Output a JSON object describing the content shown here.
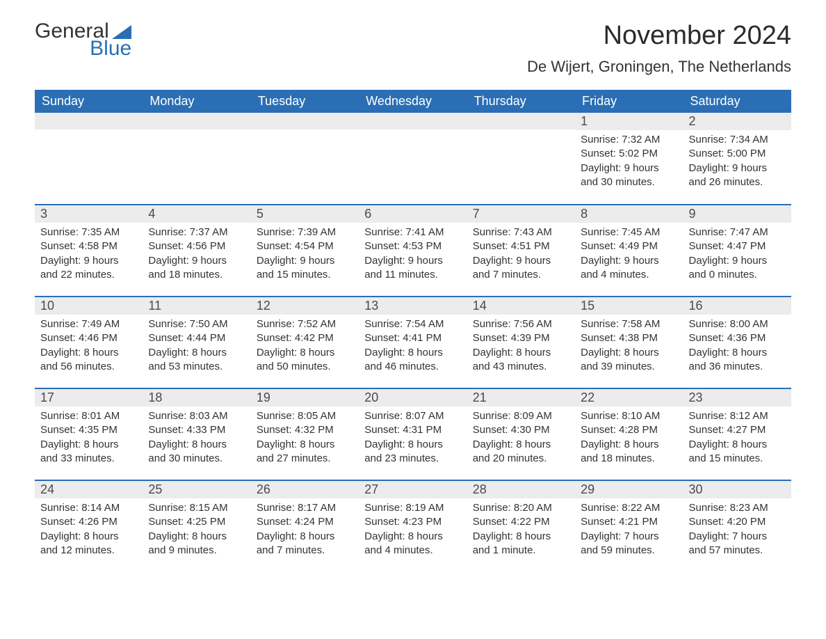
{
  "brand": {
    "name": "General",
    "sub": "Blue",
    "logo_color": "#2a6fb5"
  },
  "title": "November 2024",
  "location": "De Wijert, Groningen, The Netherlands",
  "colors": {
    "header_bg": "#2a6fb5",
    "header_text": "#ffffff",
    "daynum_bg": "#ececec",
    "row_divider": "#2a6fb5",
    "body_text": "#333333",
    "background": "#ffffff"
  },
  "layout": {
    "columns": 7,
    "rows": 5,
    "font_family": "Segoe UI / Arial",
    "title_fontsize": 38,
    "location_fontsize": 22,
    "dayheader_fontsize": 18,
    "cell_fontsize": 15
  },
  "day_headers": [
    "Sunday",
    "Monday",
    "Tuesday",
    "Wednesday",
    "Thursday",
    "Friday",
    "Saturday"
  ],
  "weeks": [
    [
      null,
      null,
      null,
      null,
      null,
      {
        "n": "1",
        "sunrise": "Sunrise: 7:32 AM",
        "sunset": "Sunset: 5:02 PM",
        "dl1": "Daylight: 9 hours",
        "dl2": "and 30 minutes."
      },
      {
        "n": "2",
        "sunrise": "Sunrise: 7:34 AM",
        "sunset": "Sunset: 5:00 PM",
        "dl1": "Daylight: 9 hours",
        "dl2": "and 26 minutes."
      }
    ],
    [
      {
        "n": "3",
        "sunrise": "Sunrise: 7:35 AM",
        "sunset": "Sunset: 4:58 PM",
        "dl1": "Daylight: 9 hours",
        "dl2": "and 22 minutes."
      },
      {
        "n": "4",
        "sunrise": "Sunrise: 7:37 AM",
        "sunset": "Sunset: 4:56 PM",
        "dl1": "Daylight: 9 hours",
        "dl2": "and 18 minutes."
      },
      {
        "n": "5",
        "sunrise": "Sunrise: 7:39 AM",
        "sunset": "Sunset: 4:54 PM",
        "dl1": "Daylight: 9 hours",
        "dl2": "and 15 minutes."
      },
      {
        "n": "6",
        "sunrise": "Sunrise: 7:41 AM",
        "sunset": "Sunset: 4:53 PM",
        "dl1": "Daylight: 9 hours",
        "dl2": "and 11 minutes."
      },
      {
        "n": "7",
        "sunrise": "Sunrise: 7:43 AM",
        "sunset": "Sunset: 4:51 PM",
        "dl1": "Daylight: 9 hours",
        "dl2": "and 7 minutes."
      },
      {
        "n": "8",
        "sunrise": "Sunrise: 7:45 AM",
        "sunset": "Sunset: 4:49 PM",
        "dl1": "Daylight: 9 hours",
        "dl2": "and 4 minutes."
      },
      {
        "n": "9",
        "sunrise": "Sunrise: 7:47 AM",
        "sunset": "Sunset: 4:47 PM",
        "dl1": "Daylight: 9 hours",
        "dl2": "and 0 minutes."
      }
    ],
    [
      {
        "n": "10",
        "sunrise": "Sunrise: 7:49 AM",
        "sunset": "Sunset: 4:46 PM",
        "dl1": "Daylight: 8 hours",
        "dl2": "and 56 minutes."
      },
      {
        "n": "11",
        "sunrise": "Sunrise: 7:50 AM",
        "sunset": "Sunset: 4:44 PM",
        "dl1": "Daylight: 8 hours",
        "dl2": "and 53 minutes."
      },
      {
        "n": "12",
        "sunrise": "Sunrise: 7:52 AM",
        "sunset": "Sunset: 4:42 PM",
        "dl1": "Daylight: 8 hours",
        "dl2": "and 50 minutes."
      },
      {
        "n": "13",
        "sunrise": "Sunrise: 7:54 AM",
        "sunset": "Sunset: 4:41 PM",
        "dl1": "Daylight: 8 hours",
        "dl2": "and 46 minutes."
      },
      {
        "n": "14",
        "sunrise": "Sunrise: 7:56 AM",
        "sunset": "Sunset: 4:39 PM",
        "dl1": "Daylight: 8 hours",
        "dl2": "and 43 minutes."
      },
      {
        "n": "15",
        "sunrise": "Sunrise: 7:58 AM",
        "sunset": "Sunset: 4:38 PM",
        "dl1": "Daylight: 8 hours",
        "dl2": "and 39 minutes."
      },
      {
        "n": "16",
        "sunrise": "Sunrise: 8:00 AM",
        "sunset": "Sunset: 4:36 PM",
        "dl1": "Daylight: 8 hours",
        "dl2": "and 36 minutes."
      }
    ],
    [
      {
        "n": "17",
        "sunrise": "Sunrise: 8:01 AM",
        "sunset": "Sunset: 4:35 PM",
        "dl1": "Daylight: 8 hours",
        "dl2": "and 33 minutes."
      },
      {
        "n": "18",
        "sunrise": "Sunrise: 8:03 AM",
        "sunset": "Sunset: 4:33 PM",
        "dl1": "Daylight: 8 hours",
        "dl2": "and 30 minutes."
      },
      {
        "n": "19",
        "sunrise": "Sunrise: 8:05 AM",
        "sunset": "Sunset: 4:32 PM",
        "dl1": "Daylight: 8 hours",
        "dl2": "and 27 minutes."
      },
      {
        "n": "20",
        "sunrise": "Sunrise: 8:07 AM",
        "sunset": "Sunset: 4:31 PM",
        "dl1": "Daylight: 8 hours",
        "dl2": "and 23 minutes."
      },
      {
        "n": "21",
        "sunrise": "Sunrise: 8:09 AM",
        "sunset": "Sunset: 4:30 PM",
        "dl1": "Daylight: 8 hours",
        "dl2": "and 20 minutes."
      },
      {
        "n": "22",
        "sunrise": "Sunrise: 8:10 AM",
        "sunset": "Sunset: 4:28 PM",
        "dl1": "Daylight: 8 hours",
        "dl2": "and 18 minutes."
      },
      {
        "n": "23",
        "sunrise": "Sunrise: 8:12 AM",
        "sunset": "Sunset: 4:27 PM",
        "dl1": "Daylight: 8 hours",
        "dl2": "and 15 minutes."
      }
    ],
    [
      {
        "n": "24",
        "sunrise": "Sunrise: 8:14 AM",
        "sunset": "Sunset: 4:26 PM",
        "dl1": "Daylight: 8 hours",
        "dl2": "and 12 minutes."
      },
      {
        "n": "25",
        "sunrise": "Sunrise: 8:15 AM",
        "sunset": "Sunset: 4:25 PM",
        "dl1": "Daylight: 8 hours",
        "dl2": "and 9 minutes."
      },
      {
        "n": "26",
        "sunrise": "Sunrise: 8:17 AM",
        "sunset": "Sunset: 4:24 PM",
        "dl1": "Daylight: 8 hours",
        "dl2": "and 7 minutes."
      },
      {
        "n": "27",
        "sunrise": "Sunrise: 8:19 AM",
        "sunset": "Sunset: 4:23 PM",
        "dl1": "Daylight: 8 hours",
        "dl2": "and 4 minutes."
      },
      {
        "n": "28",
        "sunrise": "Sunrise: 8:20 AM",
        "sunset": "Sunset: 4:22 PM",
        "dl1": "Daylight: 8 hours",
        "dl2": "and 1 minute."
      },
      {
        "n": "29",
        "sunrise": "Sunrise: 8:22 AM",
        "sunset": "Sunset: 4:21 PM",
        "dl1": "Daylight: 7 hours",
        "dl2": "and 59 minutes."
      },
      {
        "n": "30",
        "sunrise": "Sunrise: 8:23 AM",
        "sunset": "Sunset: 4:20 PM",
        "dl1": "Daylight: 7 hours",
        "dl2": "and 57 minutes."
      }
    ]
  ]
}
